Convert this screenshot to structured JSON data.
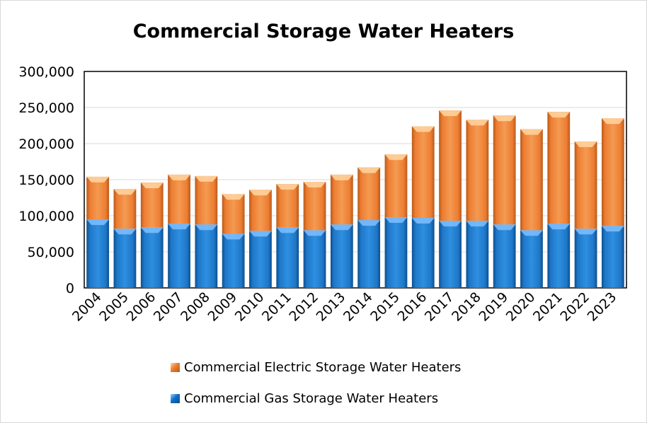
{
  "chart_data": {
    "type": "bar",
    "stacked": true,
    "title": "Commercial Storage Water Heaters",
    "categories": [
      "2004",
      "2005",
      "2006",
      "2007",
      "2008",
      "2009",
      "2010",
      "2011",
      "2012",
      "2013",
      "2014",
      "2015",
      "2016",
      "2017",
      "2018",
      "2019",
      "2020",
      "2021",
      "2022",
      "2023"
    ],
    "series": [
      {
        "name": "Commercial Gas Storage Water Heaters",
        "color": "#1f77c8",
        "values": [
          95000,
          82000,
          84000,
          89000,
          88000,
          75000,
          79000,
          84000,
          80000,
          88000,
          94000,
          98000,
          97000,
          93000,
          93000,
          88000,
          80000,
          89000,
          82000,
          86000
        ]
      },
      {
        "name": "Commercial Electric Storage Water Heaters",
        "color": "#ed7d31",
        "values": [
          59000,
          55000,
          62000,
          68000,
          67000,
          55000,
          57000,
          60000,
          67000,
          69000,
          73000,
          87000,
          127000,
          153000,
          140000,
          151000,
          140000,
          155000,
          121000,
          149000
        ]
      }
    ],
    "ylim": [
      0,
      300000
    ],
    "yticks": [
      "300,000",
      "250,000",
      "200,000",
      "150,000",
      "100,000",
      "50,000",
      "0"
    ],
    "ytick_values": [
      300000,
      250000,
      200000,
      150000,
      100000,
      50000,
      0
    ],
    "grid": true,
    "legend_position": "bottom",
    "xlabel": "",
    "ylabel": ""
  }
}
